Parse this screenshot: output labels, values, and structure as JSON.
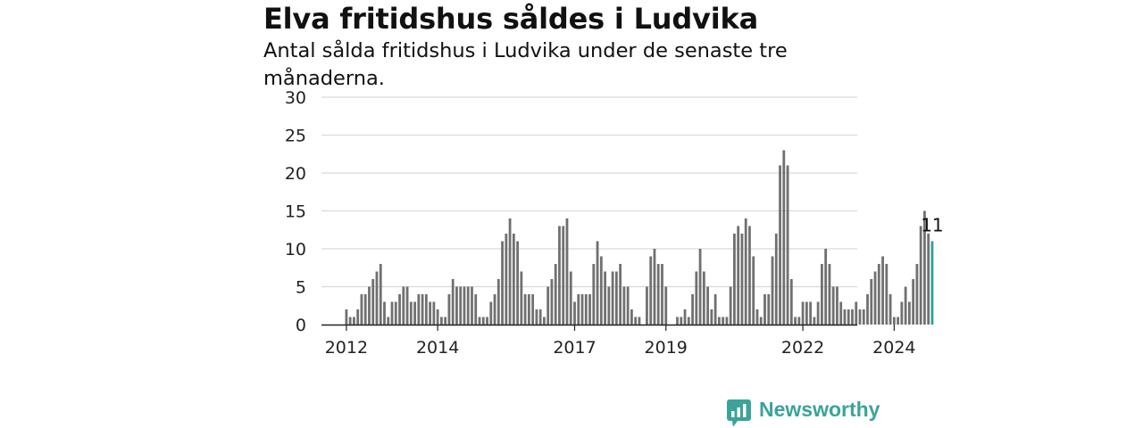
{
  "title": "Elva fritidshus såldes i Ludvika",
  "subtitle": "Antal sålda fritidshus i Ludvika under de senaste tre månaderna.",
  "logo_text": "Newsworthy",
  "colors": {
    "bar": "#707070",
    "highlight": "#2aa198",
    "grid": "#d9d9d9",
    "axis": "#222222"
  },
  "chart_data": {
    "type": "bar",
    "title": "Elva fritidshus såldes i Ludvika",
    "subtitle": "Antal sålda fritidshus i Ludvika under de senaste tre månaderna.",
    "xlabel": "",
    "ylabel": "",
    "ylim": [
      0,
      30
    ],
    "yticks": [
      0,
      5,
      10,
      15,
      20,
      25,
      30
    ],
    "x_start": "2012-01",
    "x_end": "2024-09",
    "xticks": [
      {
        "label": "2012",
        "x": "2012-01"
      },
      {
        "label": "2014",
        "x": "2014-01"
      },
      {
        "label": "2017",
        "x": "2017-01"
      },
      {
        "label": "2019",
        "x": "2019-01"
      },
      {
        "label": "2022",
        "x": "2022-01"
      },
      {
        "label": "2024",
        "x": "2024-01"
      }
    ],
    "highlight_label": "11",
    "values": [
      2,
      1,
      1,
      2,
      4,
      4,
      5,
      6,
      7,
      8,
      3,
      1,
      3,
      3,
      4,
      5,
      5,
      3,
      3,
      4,
      4,
      4,
      3,
      3,
      2,
      1,
      1,
      4,
      6,
      5,
      5,
      5,
      5,
      5,
      4,
      1,
      1,
      1,
      3,
      4,
      6,
      11,
      12,
      14,
      12,
      11,
      7,
      4,
      4,
      4,
      2,
      2,
      1,
      5,
      6,
      8,
      13,
      13,
      14,
      7,
      3,
      4,
      4,
      4,
      4,
      8,
      11,
      9,
      7,
      5,
      7,
      7,
      8,
      5,
      5,
      2,
      1,
      1,
      0,
      5,
      9,
      10,
      8,
      8,
      5,
      0,
      0,
      1,
      1,
      2,
      1,
      4,
      7,
      10,
      7,
      5,
      2,
      4,
      1,
      1,
      1,
      5,
      12,
      13,
      12,
      14,
      13,
      9,
      2,
      1,
      4,
      4,
      9,
      12,
      21,
      23,
      21,
      6,
      1,
      1,
      3,
      3,
      3,
      1,
      3,
      8,
      10,
      8,
      5,
      5,
      3,
      2,
      2,
      2,
      3,
      2,
      2,
      4,
      6,
      7,
      8,
      9,
      8,
      4,
      1,
      1,
      3,
      5,
      3,
      6,
      8,
      13,
      15,
      12,
      11
    ]
  }
}
